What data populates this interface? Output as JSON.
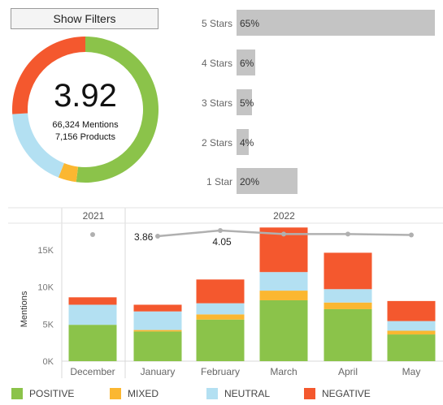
{
  "controls": {
    "filter_button": "Show Filters"
  },
  "summary": {
    "score": "3.92",
    "mentions": "66,324 Mentions",
    "products": "7,156 Products"
  },
  "colors": {
    "positive": "#8bc34a",
    "mixed": "#fbb731",
    "neutral": "#b3e0f2",
    "negative": "#f4582e",
    "bar_gray": "#c4c4c4",
    "line_gray": "#b0b0b0"
  },
  "sentiment_share": [
    {
      "name": "POSITIVE",
      "value": 0.52
    },
    {
      "name": "MIXED",
      "value": 0.04
    },
    {
      "name": "NEUTRAL",
      "value": 0.18
    },
    {
      "name": "NEGATIVE",
      "value": 0.26
    }
  ],
  "star_ratings": [
    {
      "label": "5 Stars",
      "value": 65,
      "text": "65%"
    },
    {
      "label": "4 Stars",
      "value": 6,
      "text": "6%"
    },
    {
      "label": "3 Stars",
      "value": 5,
      "text": "5%"
    },
    {
      "label": "2 Stars",
      "value": 4,
      "text": "4%"
    },
    {
      "label": "1 Star",
      "value": 20,
      "text": "20%"
    }
  ],
  "chart_data": {
    "type": "bar",
    "stacked": true,
    "year_headers": [
      "2021",
      "2022"
    ],
    "categories": [
      "December",
      "January",
      "February",
      "March",
      "April",
      "May"
    ],
    "ylabel": "Mentions",
    "yticks": [
      "0K",
      "5K",
      "10K",
      "15K"
    ],
    "ylim": [
      0,
      18000
    ],
    "series": [
      {
        "name": "POSITIVE",
        "values": [
          4900,
          4000,
          5600,
          8200,
          7000,
          3600
        ]
      },
      {
        "name": "MIXED",
        "values": [
          0,
          200,
          700,
          1300,
          900,
          500
        ]
      },
      {
        "name": "NEUTRAL",
        "values": [
          2700,
          2500,
          1500,
          2500,
          1800,
          1300
        ]
      },
      {
        "name": "NEGATIVE",
        "values": [
          1000,
          900,
          3200,
          6000,
          4900,
          2700
        ]
      }
    ],
    "rating_line": {
      "values": [
        null,
        3.86,
        4.05,
        3.93,
        3.93,
        3.9
      ],
      "point_labels": [
        "",
        "3.86",
        "4.05",
        "",
        "",
        ""
      ],
      "orphan_point_month": "December"
    }
  },
  "legend": [
    "POSITIVE",
    "MIXED",
    "NEUTRAL",
    "NEGATIVE"
  ]
}
